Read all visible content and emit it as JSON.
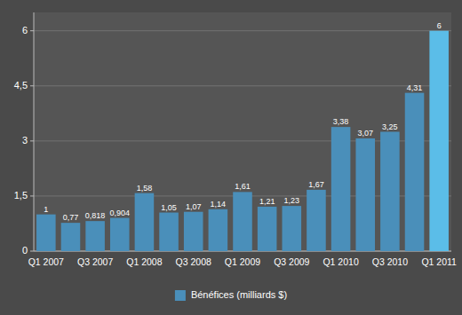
{
  "chart_data": {
    "type": "bar",
    "categories": [
      "Q1 2007",
      null,
      "Q3 2007",
      null,
      "Q1 2008",
      null,
      "Q3 2008",
      null,
      "Q1 2009",
      null,
      "Q3 2009",
      null,
      "Q1 2010",
      null,
      "Q3 2010",
      null,
      "Q1 2011"
    ],
    "series": [
      {
        "name": "Bénéfices (milliards $)",
        "color": "#4A8FBA",
        "colors": [
          "#4A8FBA",
          "#4A8FBA",
          "#4A8FBA",
          "#4A8FBA",
          "#4A8FBA",
          "#4A8FBA",
          "#4A8FBA",
          "#4A8FBA",
          "#4A8FBA",
          "#4A8FBA",
          "#4A8FBA",
          "#4A8FBA",
          "#4A8FBA",
          "#4A8FBA",
          "#4A8FBA",
          "#4A8FBA",
          "#5BBDE8"
        ],
        "values": [
          1.0,
          0.77,
          0.818,
          0.904,
          1.58,
          1.05,
          1.07,
          1.14,
          1.61,
          1.21,
          1.23,
          1.67,
          3.38,
          3.07,
          3.25,
          4.31,
          6.0
        ],
        "value_labels": [
          "1",
          "0,77",
          "0,818",
          "0,904",
          "1,58",
          "1,05",
          "1,07",
          "1,14",
          "1,61",
          "1,21",
          "1,23",
          "1,67",
          "3,38",
          "3,07",
          "3,25",
          "4,31",
          "6"
        ]
      }
    ],
    "ylim": [
      0,
      6.5
    ],
    "yticks": [
      0,
      {
        "value": 1.5,
        "label": "1,5"
      },
      3,
      {
        "value": 4.5,
        "label": "4,5"
      },
      6
    ],
    "grid": true,
    "data_labels": true,
    "legend": "bottom"
  }
}
